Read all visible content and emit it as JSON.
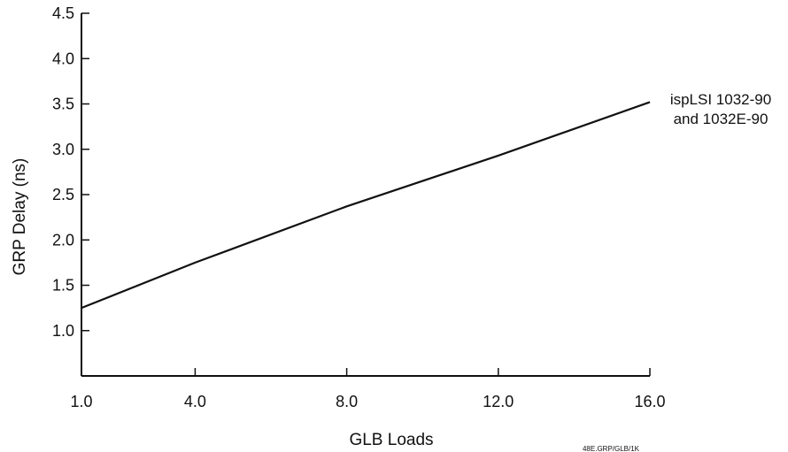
{
  "chart_data": {
    "type": "line",
    "xlabel": "GLB Loads",
    "ylabel": "GRP Delay (ns)",
    "xlim": [
      1.0,
      16.0
    ],
    "ylim": [
      0.5,
      4.5
    ],
    "x_ticks": [
      "1.0",
      "4.0",
      "8.0",
      "12.0",
      "16.0"
    ],
    "y_ticks": [
      "1.0",
      "1.5",
      "2.0",
      "2.5",
      "3.0",
      "3.5",
      "4.0",
      "4.5"
    ],
    "grid": false,
    "series": [
      {
        "label_lines": [
          "ispLSI 1032-90",
          "and 1032E-90"
        ],
        "x": [
          1.0,
          4.0,
          8.0,
          12.0,
          16.0
        ],
        "y": [
          1.25,
          1.75,
          2.37,
          2.93,
          3.52
        ]
      }
    ],
    "figure_code": "48E.GRP/GLB/1K"
  }
}
